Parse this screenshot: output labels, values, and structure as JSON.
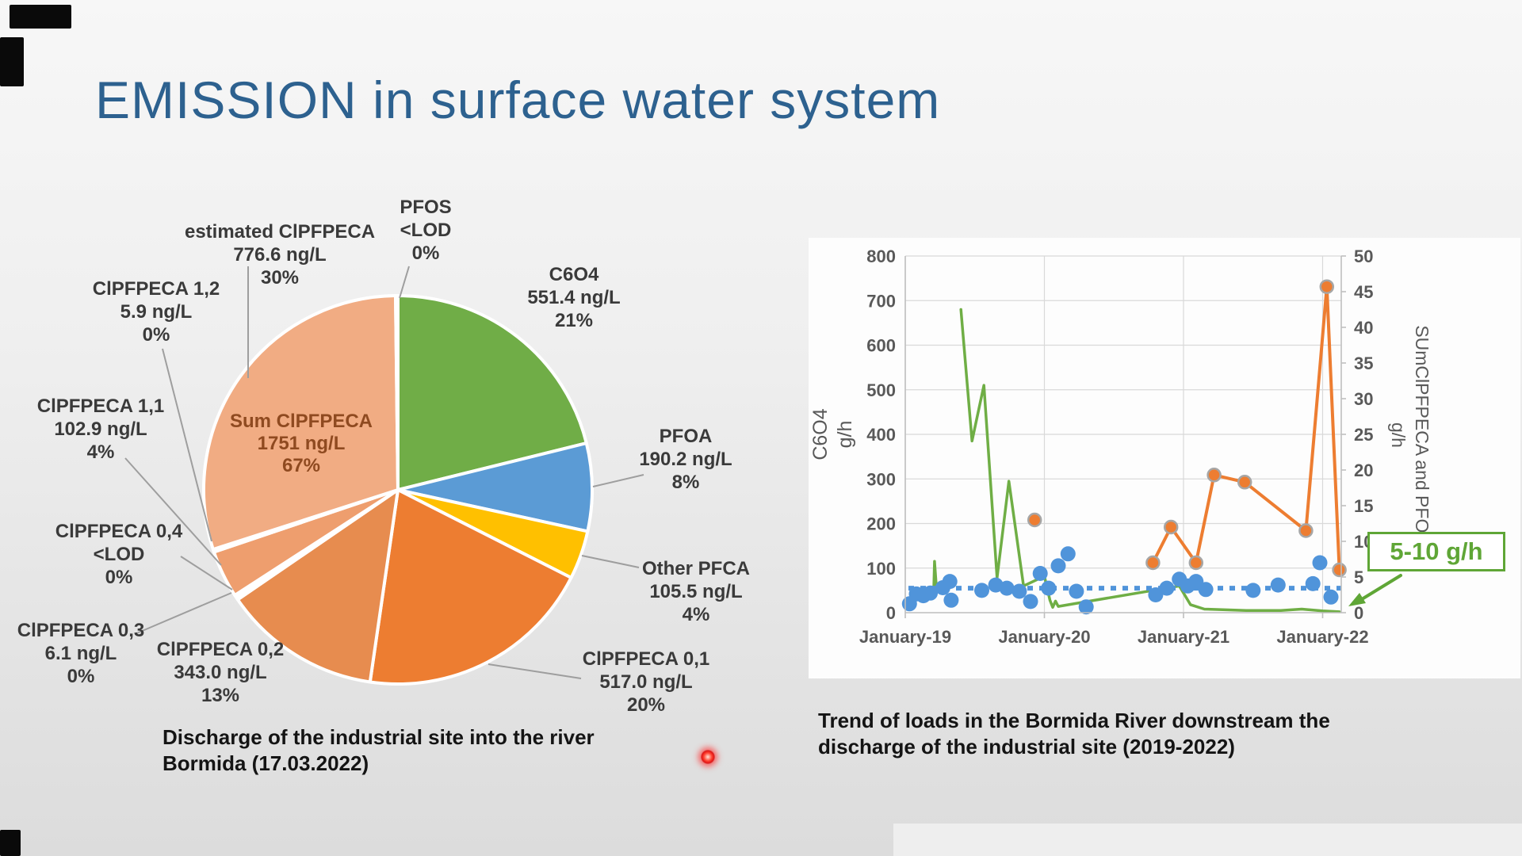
{
  "slide": {
    "title": "EMISSION in surface water system",
    "title_color": "#2d618f"
  },
  "pie_caption": {
    "line1": "Discharge of the industrial site into the river",
    "line2": "Bormida (17.03.2022)"
  },
  "trend_caption": {
    "line1": "Trend of loads in the Bormida River downstream the",
    "line2": "discharge of the industrial site (2019-2022)"
  },
  "annotation": {
    "text": "5-10 g/h",
    "color": "#5fa636"
  },
  "chart_data": [
    {
      "type": "pie",
      "title": "Discharge of the industrial site into the river Bormida (17.03.2022)",
      "center_label": {
        "label": "Sum ClPFPECA",
        "value": "1751 ng/L",
        "pct": "67%"
      },
      "slices": [
        {
          "label": "C6O4",
          "value": "551.4 ng/L",
          "pct": "21%",
          "ng": 551.4,
          "color": "#70AD47"
        },
        {
          "label": "PFOA",
          "value": "190.2 ng/L",
          "pct": "8%",
          "ng": 190.2,
          "color": "#5B9BD5"
        },
        {
          "label": "Other PFCA",
          "value": "105.5 ng/L",
          "pct": "4%",
          "ng": 105.5,
          "color": "#FFC000"
        },
        {
          "label": "ClPFPECA 0,1",
          "value": "517.0 ng/L",
          "pct": "20%",
          "ng": 517.0,
          "color": "#ED7D31"
        },
        {
          "label": "ClPFPECA 0,2",
          "value": "343.0 ng/L",
          "pct": "13%",
          "ng": 343.0,
          "color": "#E78C4F"
        },
        {
          "label": "ClPFPECA 0,3",
          "value": "6.1 ng/L",
          "pct": "0%",
          "ng": 6.1,
          "color": "#DD6F2E"
        },
        {
          "label": "ClPFPECA 0,4",
          "value": "<LOD",
          "pct": "0%",
          "ng": 5.0,
          "color": "#F3C49E"
        },
        {
          "label": "ClPFPECA 1,1",
          "value": "102.9 ng/L",
          "pct": "4%",
          "ng": 102.9,
          "color": "#EE9E6E"
        },
        {
          "label": "ClPFPECA 1,2",
          "value": "5.9 ng/L",
          "pct": "0%",
          "ng": 5.9,
          "color": "#E2813D"
        },
        {
          "label": "estimated ClPFPECA",
          "value": "776.6 ng/L",
          "pct": "30%",
          "ng": 776.6,
          "color": "#F1AC83"
        },
        {
          "label": "PFOS",
          "value": "<LOD",
          "pct": "0%",
          "ng": 5.0,
          "color": "#ECECEC"
        }
      ]
    },
    {
      "type": "line",
      "title": "Trend of loads in the Bormida River downstream the discharge of the industrial site (2019-2022)",
      "x_ticks": [
        "January-19",
        "January-20",
        "January-21",
        "January-22"
      ],
      "x_range_years": [
        0,
        3.13
      ],
      "grid": true,
      "left_axis": {
        "title_line1": "C6O4",
        "title_line2": "g/h",
        "min": 0,
        "max": 800,
        "step": 100,
        "ticks": [
          0,
          100,
          200,
          300,
          400,
          500,
          600,
          700,
          800
        ]
      },
      "right_axis": {
        "title_line1": "SUmClPFPECA and PFOA",
        "title_line2": "g/h",
        "min": 0,
        "max": 50,
        "step": 5,
        "ticks": [
          0,
          5,
          10,
          15,
          20,
          25,
          30,
          35,
          40,
          45,
          50
        ]
      },
      "series": [
        {
          "name": "green-line",
          "type": "line",
          "axis": "left",
          "color": "#6FAE45",
          "segments": [
            [
              [
                0.205,
                55
              ],
              [
                0.21,
                115
              ],
              [
                0.225,
                50
              ]
            ],
            [
              [
                0.4,
                680
              ],
              [
                0.48,
                385
              ],
              [
                0.565,
                510
              ],
              [
                0.66,
                78
              ],
              [
                0.745,
                295
              ],
              [
                0.85,
                60
              ],
              [
                1.0,
                82
              ],
              [
                1.04,
                28
              ],
              [
                1.06,
                12
              ],
              [
                1.08,
                26
              ],
              [
                1.1,
                14
              ],
              [
                1.97,
                60
              ],
              [
                2.05,
                18
              ],
              [
                2.15,
                8
              ],
              [
                2.45,
                5
              ],
              [
                2.7,
                5
              ],
              [
                2.85,
                8
              ],
              [
                3.0,
                4
              ],
              [
                3.12,
                2
              ]
            ]
          ]
        },
        {
          "name": "blue-dots",
          "type": "scatter",
          "axis": "left",
          "color": "#5094DA",
          "points": [
            [
              0.03,
              20
            ],
            [
              0.08,
              42
            ],
            [
              0.13,
              38
            ],
            [
              0.18,
              44
            ],
            [
              0.27,
              56
            ],
            [
              0.32,
              70
            ],
            [
              0.33,
              28
            ],
            [
              0.55,
              50
            ],
            [
              0.65,
              62
            ],
            [
              0.73,
              55
            ],
            [
              0.82,
              48
            ],
            [
              0.9,
              25
            ],
            [
              0.97,
              88
            ],
            [
              1.03,
              55
            ],
            [
              1.1,
              105
            ],
            [
              1.17,
              132
            ],
            [
              1.23,
              48
            ],
            [
              1.3,
              13
            ],
            [
              1.8,
              40
            ],
            [
              1.88,
              55
            ],
            [
              1.97,
              75
            ],
            [
              2.03,
              60
            ],
            [
              2.09,
              70
            ],
            [
              2.16,
              52
            ],
            [
              2.5,
              50
            ],
            [
              2.68,
              62
            ],
            [
              2.93,
              65
            ],
            [
              2.98,
              112
            ],
            [
              3.06,
              35
            ]
          ]
        },
        {
          "name": "blue-dotted-line",
          "type": "dotted-line",
          "axis": "left",
          "color": "#5094DA",
          "value": 55
        },
        {
          "name": "orange-line",
          "type": "line-markers",
          "axis": "right",
          "color": "#ED7D31",
          "points": [
            [
              1.78,
              7
            ],
            [
              1.91,
              12
            ],
            [
              2.09,
              7
            ],
            [
              2.22,
              19.3
            ],
            [
              2.44,
              18.3
            ],
            [
              2.88,
              11.5
            ],
            [
              3.03,
              45.7
            ],
            [
              3.12,
              6
            ]
          ],
          "isolated": [
            [
              0.93,
              13
            ]
          ]
        }
      ],
      "annotation": {
        "text": "5-10 g/h",
        "color": "#5fa636"
      }
    }
  ]
}
